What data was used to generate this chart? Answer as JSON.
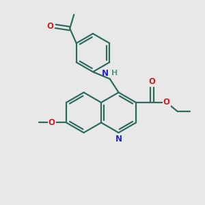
{
  "bg_color": "#e8e8e8",
  "bond_color": "#2d6b5e",
  "N_color": "#2222cc",
  "O_color": "#cc2222",
  "H_color": "#5a9a8a",
  "line_width": 1.6,
  "figsize": [
    3.0,
    3.0
  ],
  "dpi": 100,
  "xlim": [
    0,
    10
  ],
  "ylim": [
    0,
    10
  ]
}
